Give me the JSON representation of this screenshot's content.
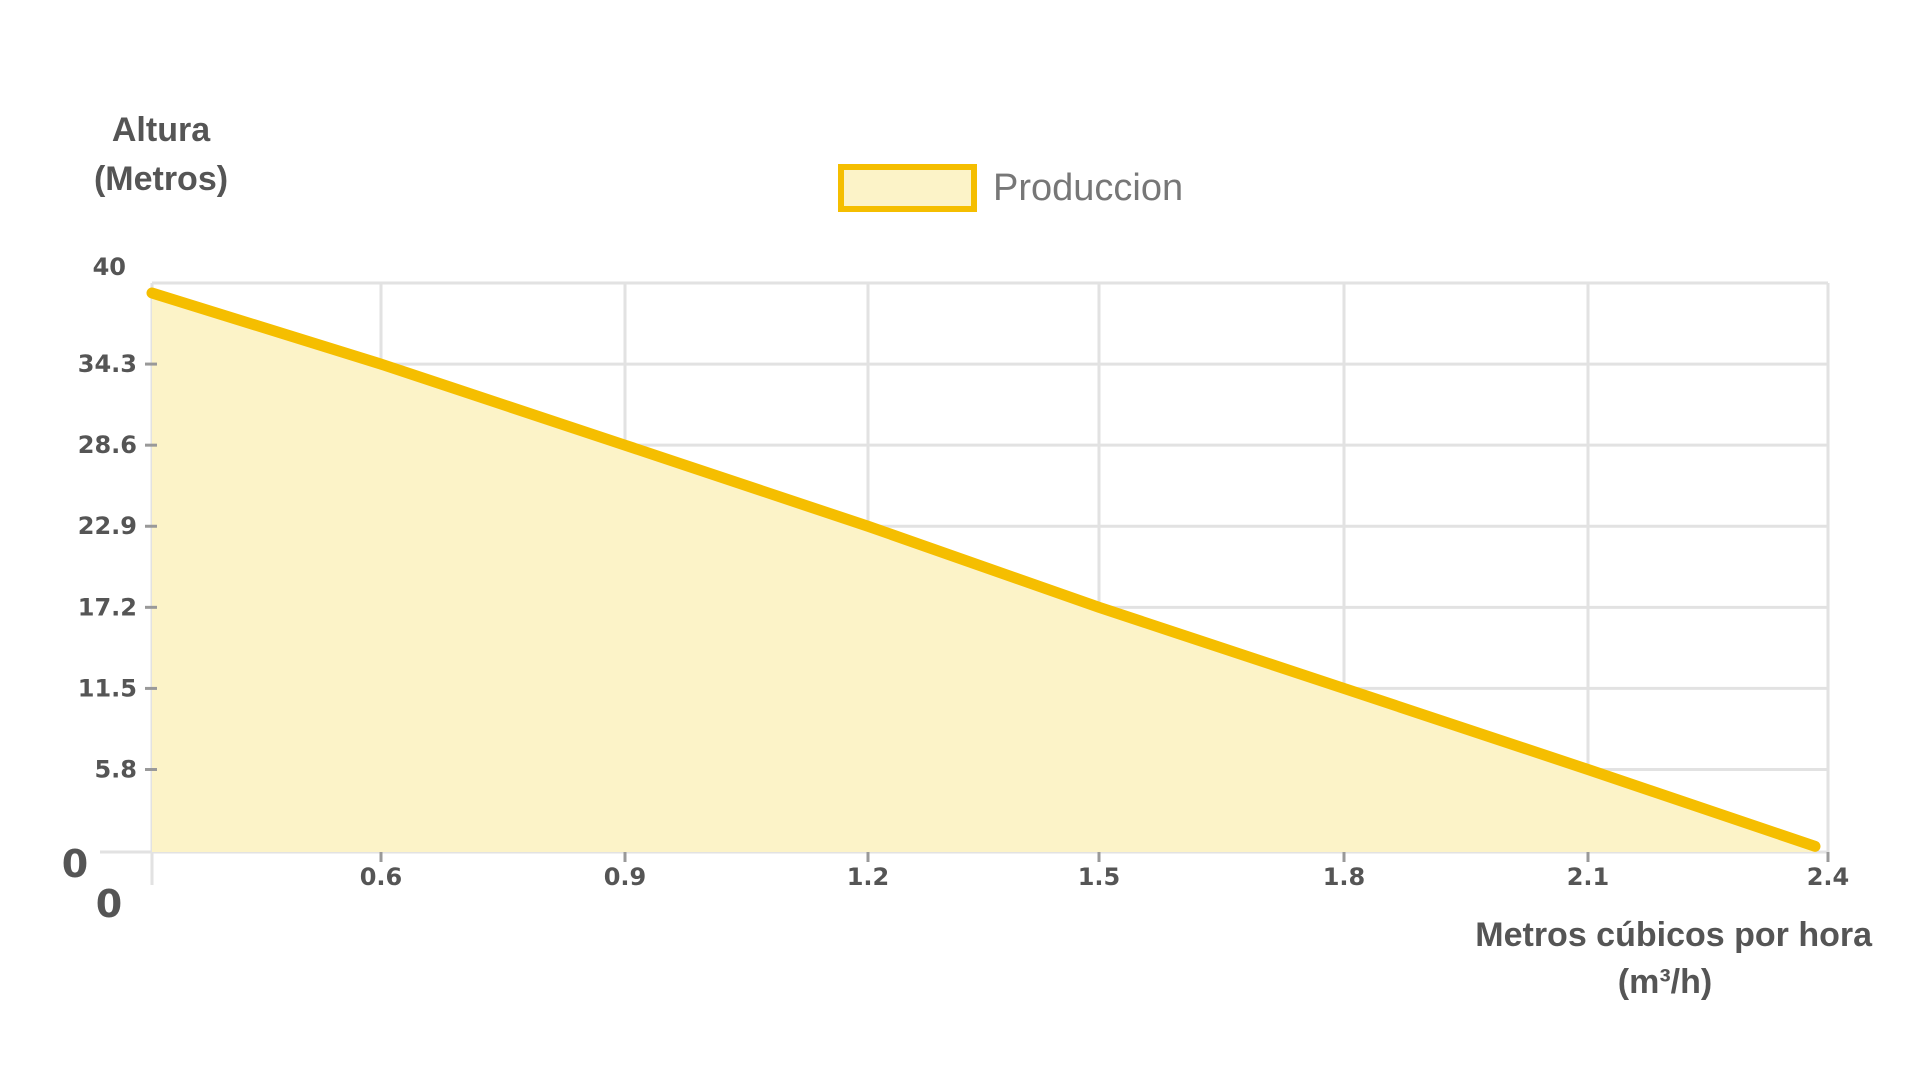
{
  "chart_data": {
    "type": "area",
    "ylabel_lines": [
      "Altura",
      "(Metros)"
    ],
    "xlabel_lines": [
      "Metros cúbicos por hora",
      "(m³/h)"
    ],
    "legend": {
      "label": "Produccion",
      "position": "top-center"
    },
    "extra_zero_labels": [
      "0",
      "0"
    ],
    "x_tick_labels": [
      "0.6",
      "0.9",
      "1.2",
      "1.5",
      "1.8",
      "2.1",
      "2.4"
    ],
    "y_tick_labels": [
      "40",
      "34.3",
      "28.6",
      "22.9",
      "17.2",
      "11.5",
      "5.8"
    ],
    "categories": [
      "0",
      "0.6",
      "0.9",
      "1.2",
      "1.5",
      "1.8",
      "2.1",
      "2.4"
    ],
    "series": [
      {
        "name": "Produccion",
        "values": [
          39.3,
          34.3,
          28.6,
          22.9,
          17.2,
          11.5,
          5.8,
          0.4
        ]
      }
    ],
    "ylim": [
      0,
      40
    ],
    "grid": true,
    "colors": {
      "line": "#F5BE00",
      "fill": "#FCF3C8",
      "grid": "#E2E2E2",
      "text": "#555555"
    }
  }
}
